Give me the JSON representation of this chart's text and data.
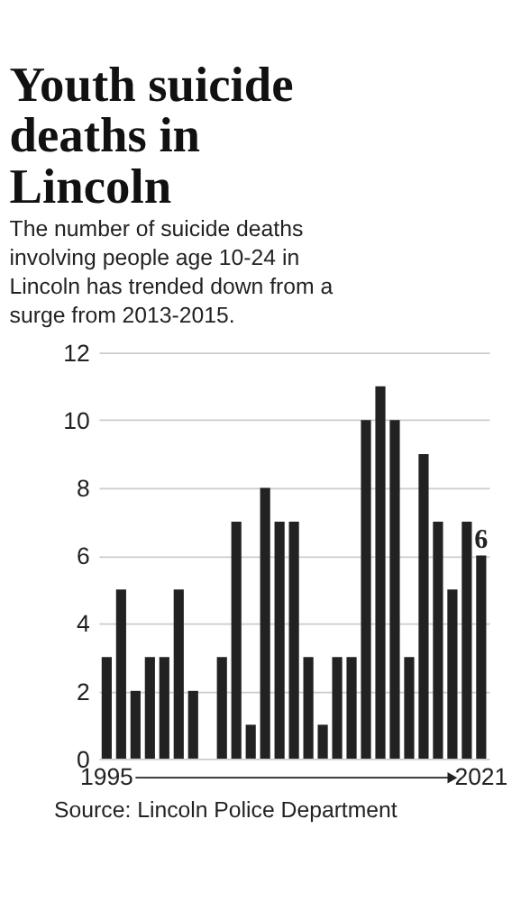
{
  "chart_data": {
    "type": "bar",
    "title": "Youth suicide deaths in Lincoln",
    "subtitle": "The number of suicide deaths involving people age 10-24 in Lincoln has trended down from a surge from 2013-2015.",
    "categories": [
      "1995",
      null,
      null,
      null,
      null,
      null,
      null,
      null,
      null,
      null,
      null,
      null,
      null,
      null,
      null,
      null,
      null,
      null,
      null,
      null,
      null,
      null,
      null,
      null,
      null,
      null,
      "2021"
    ],
    "values": [
      3,
      5,
      2,
      3,
      3,
      5,
      2,
      0,
      3,
      7,
      1,
      8,
      7,
      7,
      3,
      1,
      3,
      3,
      10,
      11,
      10,
      3,
      9,
      7,
      5,
      7,
      6
    ],
    "value_labels": [
      null,
      null,
      null,
      null,
      null,
      null,
      null,
      null,
      null,
      null,
      null,
      null,
      null,
      null,
      null,
      null,
      null,
      null,
      null,
      null,
      null,
      null,
      null,
      null,
      null,
      null,
      "6"
    ],
    "color": "#222222",
    "ylim": [
      0,
      12
    ],
    "yticks": [
      0,
      2,
      4,
      6,
      8,
      10,
      12
    ],
    "grid": "y",
    "annotations": [
      "Source: Lincoln Police Department"
    ]
  }
}
